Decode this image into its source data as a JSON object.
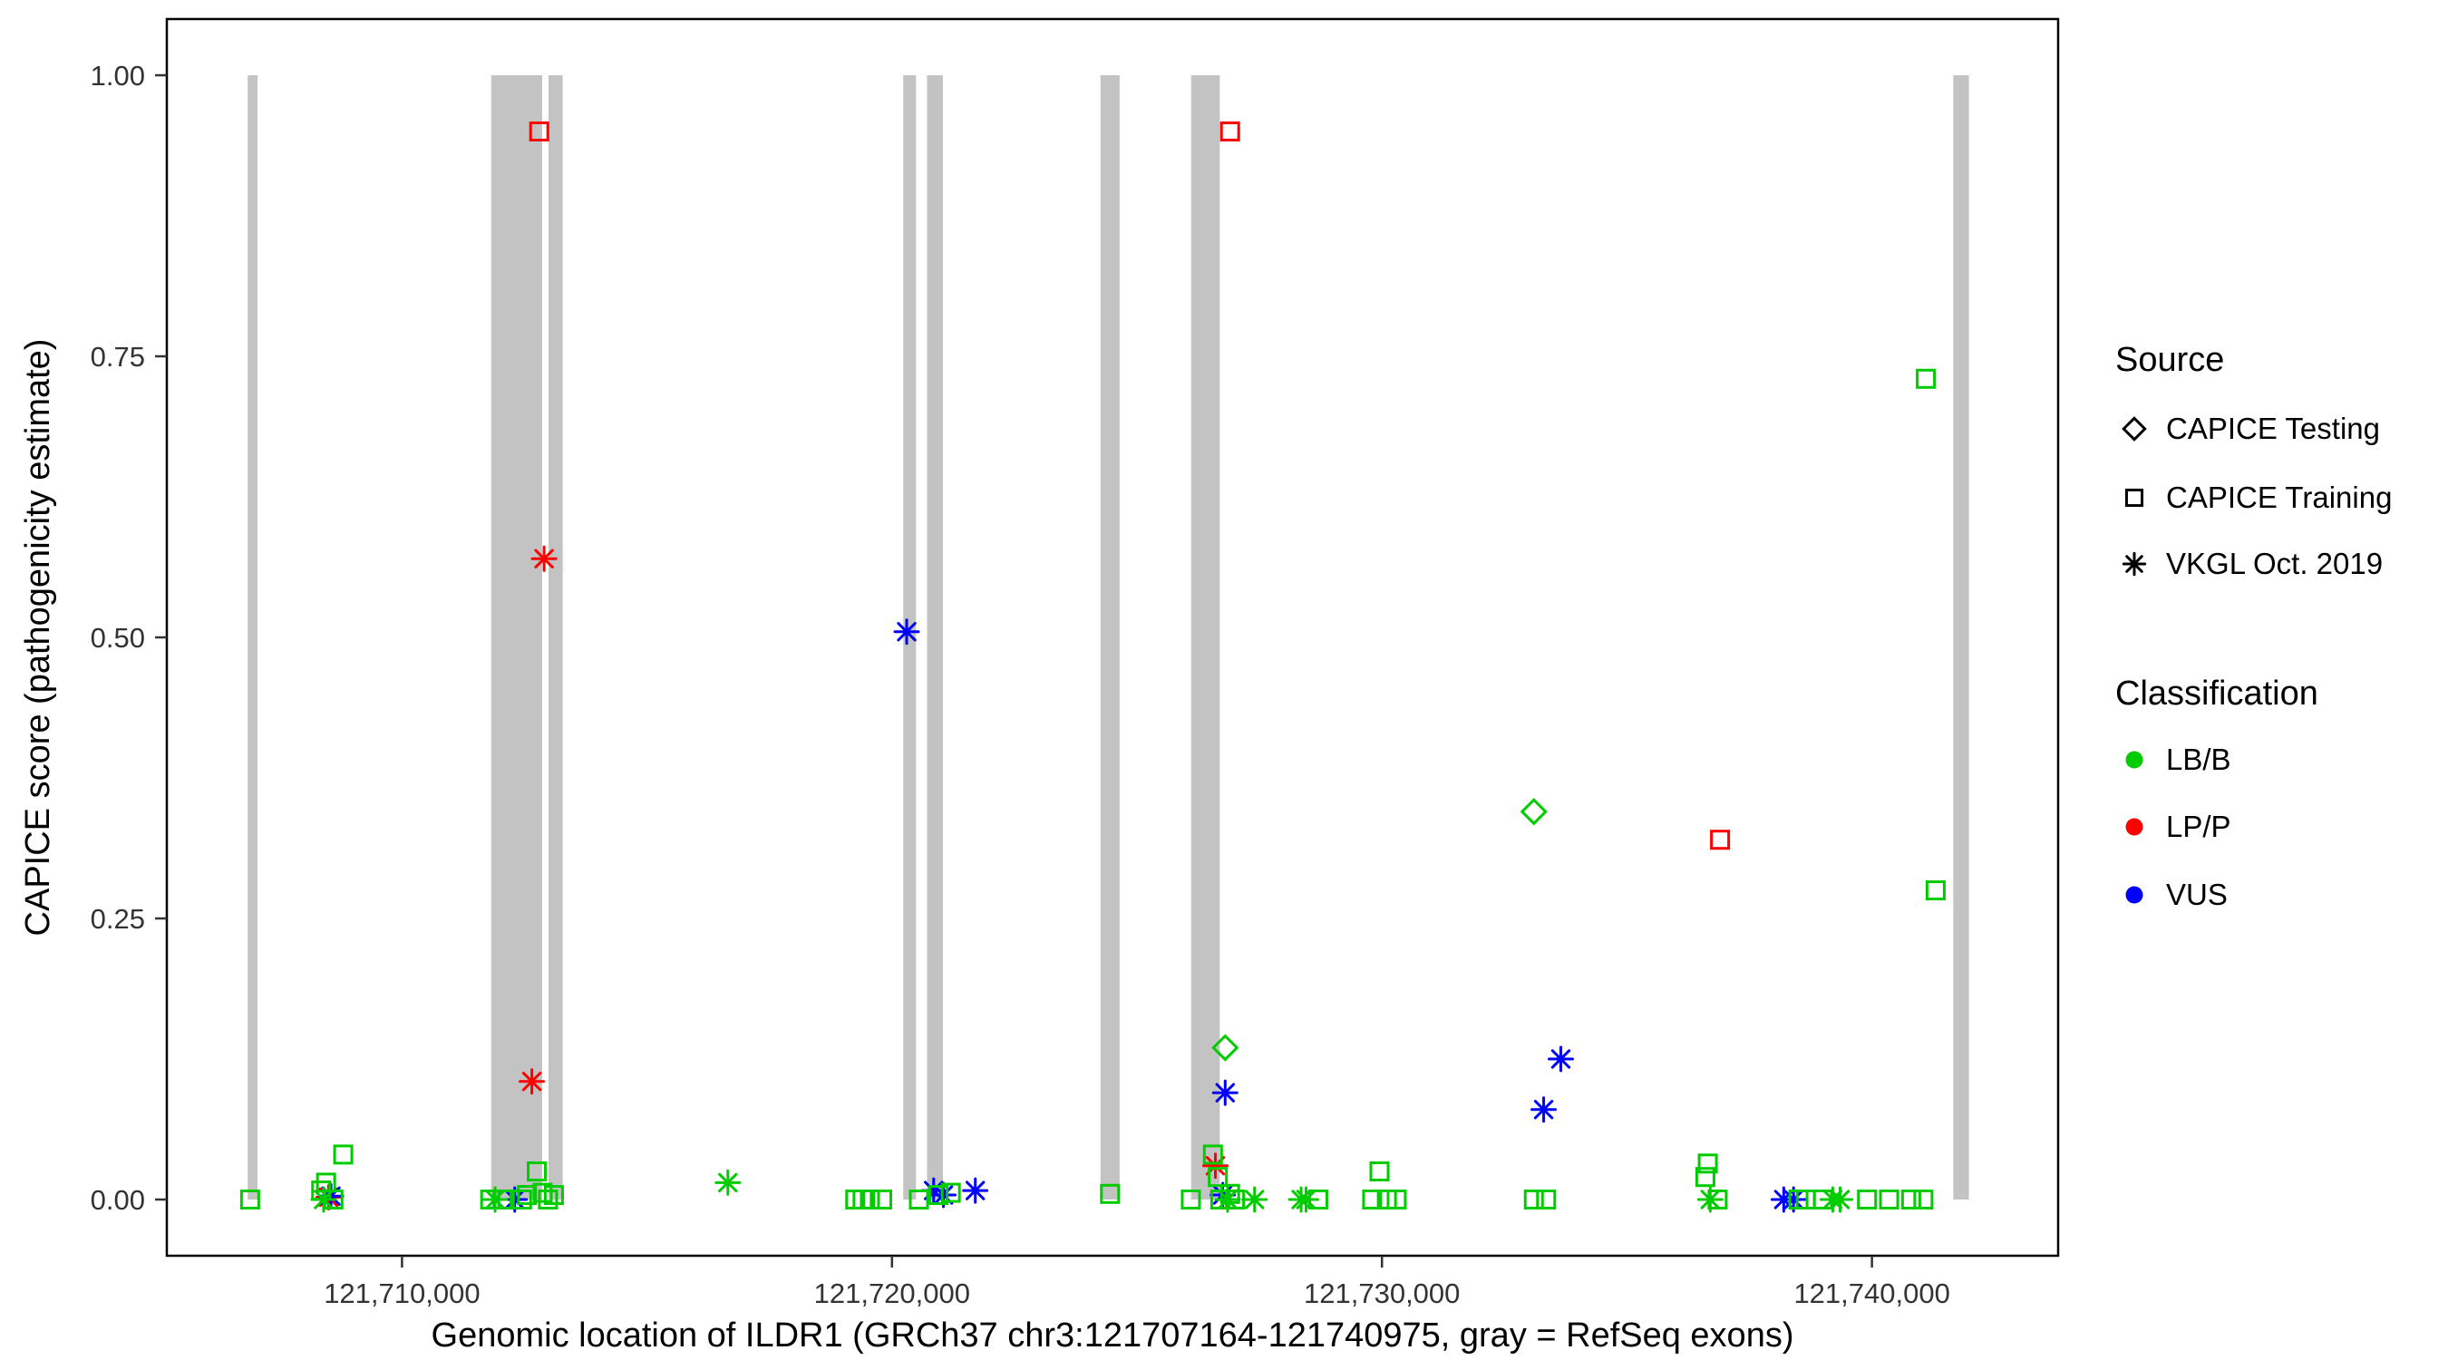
{
  "figure": {
    "xlabel": "Genomic location of ILDR1 (GRCh37 chr3:121707164-121740975, gray = RefSeq exons)",
    "ylabel": "CAPICE score (pathogenicity estimate)"
  },
  "legend": {
    "source": {
      "title": "Source",
      "items": [
        {
          "label": "CAPICE Testing",
          "shape": "diamond"
        },
        {
          "label": "CAPICE Training",
          "shape": "square"
        },
        {
          "label": "VKGL Oct. 2019",
          "shape": "asterisk"
        }
      ]
    },
    "classification": {
      "title": "Classification",
      "items": [
        {
          "label": "LB/B",
          "color": "#00CC00"
        },
        {
          "label": "LP/P",
          "color": "#FF0000"
        },
        {
          "label": "VUS",
          "color": "#0000FF"
        }
      ]
    }
  },
  "chart_data": {
    "type": "scatter",
    "title": "",
    "xlabel": "Genomic location of ILDR1 (GRCh37 chr3:121707164-121740975, gray = RefSeq exons)",
    "ylabel": "CAPICE score (pathogenicity estimate)",
    "xlim": [
      121705200,
      121743800
    ],
    "ylim": [
      -0.05,
      1.05
    ],
    "grid": false,
    "legend_position": "right",
    "x_ticks": [
      {
        "value": 121710000,
        "label": "121,710,000"
      },
      {
        "value": 121720000,
        "label": "121,720,000"
      },
      {
        "value": 121730000,
        "label": "121,730,000"
      },
      {
        "value": 121740000,
        "label": "121,740,000"
      }
    ],
    "y_ticks": [
      {
        "value": 0.0,
        "label": "0.00"
      },
      {
        "value": 0.25,
        "label": "0.25"
      },
      {
        "value": 0.5,
        "label": "0.50"
      },
      {
        "value": 0.75,
        "label": "0.75"
      },
      {
        "value": 1.0,
        "label": "1.00"
      }
    ],
    "exon_color": "#C3C3C3",
    "class_colors": {
      "LB/B": "#00CC00",
      "LP/P": "#FF0000",
      "VUS": "#0000FF"
    },
    "source_shapes": {
      "CAPICE Testing": "diamond",
      "CAPICE Training": "square",
      "VKGL Oct. 2019": "asterisk"
    },
    "exons": [
      [
        121706850,
        121707050
      ],
      [
        121711820,
        121712860
      ],
      [
        121712990,
        121713280
      ],
      [
        121720230,
        121720490
      ],
      [
        121720715,
        121721040
      ],
      [
        121724255,
        121724645
      ],
      [
        121726105,
        121726690
      ],
      [
        121741660,
        121741980
      ]
    ],
    "points": [
      {
        "x": 121712800,
        "y": 0.95,
        "source": "CAPICE Training",
        "classification": "LP/P"
      },
      {
        "x": 121726900,
        "y": 0.95,
        "source": "CAPICE Training",
        "classification": "LP/P"
      },
      {
        "x": 121736900,
        "y": 0.32,
        "source": "CAPICE Training",
        "classification": "LP/P"
      },
      {
        "x": 121712900,
        "y": 0.57,
        "source": "VKGL Oct. 2019",
        "classification": "LP/P"
      },
      {
        "x": 121712650,
        "y": 0.105,
        "source": "VKGL Oct. 2019",
        "classification": "LP/P"
      },
      {
        "x": 121726600,
        "y": 0.03,
        "source": "VKGL Oct. 2019",
        "classification": "LP/P"
      },
      {
        "x": 121708500,
        "y": 0.002,
        "source": "VKGL Oct. 2019",
        "classification": "LP/P"
      },
      {
        "x": 121720300,
        "y": 0.505,
        "source": "VKGL Oct. 2019",
        "classification": "VUS"
      },
      {
        "x": 121726800,
        "y": 0.095,
        "source": "VKGL Oct. 2019",
        "classification": "VUS"
      },
      {
        "x": 121733650,
        "y": 0.125,
        "source": "VKGL Oct. 2019",
        "classification": "VUS"
      },
      {
        "x": 121733300,
        "y": 0.08,
        "source": "VKGL Oct. 2019",
        "classification": "VUS"
      },
      {
        "x": 121708550,
        "y": 0.003,
        "source": "VKGL Oct. 2019",
        "classification": "VUS"
      },
      {
        "x": 121712300,
        "y": 0.0,
        "source": "VKGL Oct. 2019",
        "classification": "VUS"
      },
      {
        "x": 121720850,
        "y": 0.008,
        "source": "VKGL Oct. 2019",
        "classification": "VUS"
      },
      {
        "x": 121721050,
        "y": 0.004,
        "source": "VKGL Oct. 2019",
        "classification": "VUS"
      },
      {
        "x": 121721700,
        "y": 0.008,
        "source": "VKGL Oct. 2019",
        "classification": "VUS"
      },
      {
        "x": 121726750,
        "y": 0.004,
        "source": "VKGL Oct. 2019",
        "classification": "VUS"
      },
      {
        "x": 121738200,
        "y": 0.0,
        "source": "VKGL Oct. 2019",
        "classification": "VUS"
      },
      {
        "x": 121738400,
        "y": 0.0,
        "source": "VKGL Oct. 2019",
        "classification": "VUS"
      },
      {
        "x": 121733100,
        "y": 0.345,
        "source": "CAPICE Testing",
        "classification": "LB/B"
      },
      {
        "x": 121726800,
        "y": 0.135,
        "source": "CAPICE Testing",
        "classification": "LB/B"
      },
      {
        "x": 121741100,
        "y": 0.73,
        "source": "CAPICE Training",
        "classification": "LB/B"
      },
      {
        "x": 121741300,
        "y": 0.275,
        "source": "CAPICE Training",
        "classification": "LB/B"
      },
      {
        "x": 121706900,
        "y": 0.0,
        "source": "CAPICE Training",
        "classification": "LB/B"
      },
      {
        "x": 121708350,
        "y": 0.008,
        "source": "CAPICE Training",
        "classification": "LB/B"
      },
      {
        "x": 121708450,
        "y": 0.015,
        "source": "CAPICE Training",
        "classification": "LB/B"
      },
      {
        "x": 121708800,
        "y": 0.04,
        "source": "CAPICE Training",
        "classification": "LB/B"
      },
      {
        "x": 121708600,
        "y": 0.0,
        "source": "CAPICE Training",
        "classification": "LB/B"
      },
      {
        "x": 121711800,
        "y": 0.0,
        "source": "CAPICE Training",
        "classification": "LB/B"
      },
      {
        "x": 121712050,
        "y": 0.0,
        "source": "CAPICE Training",
        "classification": "LB/B"
      },
      {
        "x": 121712450,
        "y": 0.0,
        "source": "CAPICE Training",
        "classification": "LB/B"
      },
      {
        "x": 121712550,
        "y": 0.004,
        "source": "CAPICE Training",
        "classification": "LB/B"
      },
      {
        "x": 121712750,
        "y": 0.025,
        "source": "CAPICE Training",
        "classification": "LB/B"
      },
      {
        "x": 121712870,
        "y": 0.006,
        "source": "CAPICE Training",
        "classification": "LB/B"
      },
      {
        "x": 121712980,
        "y": 0.0,
        "source": "CAPICE Training",
        "classification": "LB/B"
      },
      {
        "x": 121713100,
        "y": 0.004,
        "source": "CAPICE Training",
        "classification": "LB/B"
      },
      {
        "x": 121719250,
        "y": 0.0,
        "source": "CAPICE Training",
        "classification": "LB/B"
      },
      {
        "x": 121719400,
        "y": 0.0,
        "source": "CAPICE Training",
        "classification": "LB/B"
      },
      {
        "x": 121719550,
        "y": 0.0,
        "source": "CAPICE Training",
        "classification": "LB/B"
      },
      {
        "x": 121719800,
        "y": 0.0,
        "source": "CAPICE Training",
        "classification": "LB/B"
      },
      {
        "x": 121720550,
        "y": 0.0,
        "source": "CAPICE Training",
        "classification": "LB/B"
      },
      {
        "x": 121720950,
        "y": 0.004,
        "source": "CAPICE Training",
        "classification": "LB/B"
      },
      {
        "x": 121721200,
        "y": 0.006,
        "source": "CAPICE Training",
        "classification": "LB/B"
      },
      {
        "x": 121724450,
        "y": 0.005,
        "source": "CAPICE Training",
        "classification": "LB/B"
      },
      {
        "x": 121726100,
        "y": 0.0,
        "source": "CAPICE Training",
        "classification": "LB/B"
      },
      {
        "x": 121726550,
        "y": 0.04,
        "source": "CAPICE Training",
        "classification": "LB/B"
      },
      {
        "x": 121726650,
        "y": 0.02,
        "source": "CAPICE Training",
        "classification": "LB/B"
      },
      {
        "x": 121726700,
        "y": 0.0,
        "source": "CAPICE Training",
        "classification": "LB/B"
      },
      {
        "x": 121726900,
        "y": 0.005,
        "source": "CAPICE Training",
        "classification": "LB/B"
      },
      {
        "x": 121727000,
        "y": 0.0,
        "source": "CAPICE Training",
        "classification": "LB/B"
      },
      {
        "x": 121728700,
        "y": 0.0,
        "source": "CAPICE Training",
        "classification": "LB/B"
      },
      {
        "x": 121729800,
        "y": 0.0,
        "source": "CAPICE Training",
        "classification": "LB/B"
      },
      {
        "x": 121729950,
        "y": 0.025,
        "source": "CAPICE Training",
        "classification": "LB/B"
      },
      {
        "x": 121730100,
        "y": 0.0,
        "source": "CAPICE Training",
        "classification": "LB/B"
      },
      {
        "x": 121730300,
        "y": 0.0,
        "source": "CAPICE Training",
        "classification": "LB/B"
      },
      {
        "x": 121733100,
        "y": 0.0,
        "source": "CAPICE Training",
        "classification": "LB/B"
      },
      {
        "x": 121733350,
        "y": 0.0,
        "source": "CAPICE Training",
        "classification": "LB/B"
      },
      {
        "x": 121736600,
        "y": 0.02,
        "source": "CAPICE Training",
        "classification": "LB/B"
      },
      {
        "x": 121736650,
        "y": 0.032,
        "source": "CAPICE Training",
        "classification": "LB/B"
      },
      {
        "x": 121736850,
        "y": 0.0,
        "source": "CAPICE Training",
        "classification": "LB/B"
      },
      {
        "x": 121738500,
        "y": 0.0,
        "source": "CAPICE Training",
        "classification": "LB/B"
      },
      {
        "x": 121738650,
        "y": 0.0,
        "source": "CAPICE Training",
        "classification": "LB/B"
      },
      {
        "x": 121739000,
        "y": 0.0,
        "source": "CAPICE Training",
        "classification": "LB/B"
      },
      {
        "x": 121739900,
        "y": 0.0,
        "source": "CAPICE Training",
        "classification": "LB/B"
      },
      {
        "x": 121740350,
        "y": 0.0,
        "source": "CAPICE Training",
        "classification": "LB/B"
      },
      {
        "x": 121740800,
        "y": 0.0,
        "source": "CAPICE Training",
        "classification": "LB/B"
      },
      {
        "x": 121741050,
        "y": 0.0,
        "source": "CAPICE Training",
        "classification": "LB/B"
      },
      {
        "x": 121708400,
        "y": 0.0,
        "source": "VKGL Oct. 2019",
        "classification": "LB/B"
      },
      {
        "x": 121711900,
        "y": 0.0,
        "source": "VKGL Oct. 2019",
        "classification": "LB/B"
      },
      {
        "x": 121716650,
        "y": 0.015,
        "source": "VKGL Oct. 2019",
        "classification": "LB/B"
      },
      {
        "x": 121726850,
        "y": 0.0,
        "source": "VKGL Oct. 2019",
        "classification": "LB/B"
      },
      {
        "x": 121727400,
        "y": 0.0,
        "source": "VKGL Oct. 2019",
        "classification": "LB/B"
      },
      {
        "x": 121728350,
        "y": 0.0,
        "source": "VKGL Oct. 2019",
        "classification": "LB/B"
      },
      {
        "x": 121728450,
        "y": 0.0,
        "source": "VKGL Oct. 2019",
        "classification": "LB/B"
      },
      {
        "x": 121736700,
        "y": 0.0,
        "source": "VKGL Oct. 2019",
        "classification": "LB/B"
      },
      {
        "x": 121739200,
        "y": 0.0,
        "source": "VKGL Oct. 2019",
        "classification": "LB/B"
      },
      {
        "x": 121739350,
        "y": 0.0,
        "source": "VKGL Oct. 2019",
        "classification": "LB/B"
      }
    ]
  }
}
